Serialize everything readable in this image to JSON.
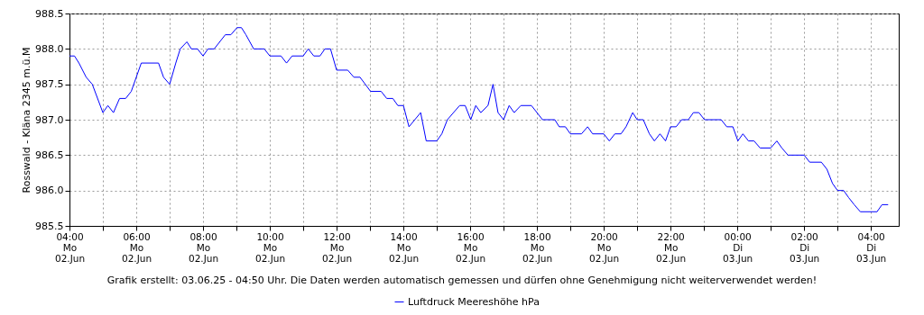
{
  "chart_data": {
    "type": "line",
    "ylabel": "Rosswald - Kläna 2345 m.ü.M",
    "annotations": [
      "Grafik erstellt: 03.06.25 - 04:50 Uhr. Die Daten werden automatisch gemessen und dürfen ohne Genehmigung nicht weiterverwendet werden!"
    ],
    "x": [
      "--06-02T04:00",
      "--06-02T04:09",
      "--06-02T04:17",
      "--06-02T04:30",
      "--06-02T04:41",
      "--06-02T05:00",
      "--06-02T05:09",
      "--06-02T05:19",
      "--06-02T05:30",
      "--06-02T05:41",
      "--06-02T05:51",
      "--06-02T06:09",
      "--06-02T06:40",
      "--06-02T06:49",
      "--06-02T07:00",
      "--06-02T07:11",
      "--06-02T07:19",
      "--06-02T07:31",
      "--06-02T07:39",
      "--06-02T07:50",
      "--06-02T08:00",
      "--06-02T08:09",
      "--06-02T08:20",
      "--06-02T08:40",
      "--06-02T08:50",
      "--06-02T09:01",
      "--06-02T09:09",
      "--06-02T09:17",
      "--06-02T09:31",
      "--06-02T09:50",
      "--06-02T10:00",
      "--06-02T10:20",
      "--06-02T10:30",
      "--06-02T10:40",
      "--06-02T11:00",
      "--06-02T11:09",
      "--06-02T11:19",
      "--06-02T11:30",
      "--06-02T11:39",
      "--06-02T11:49",
      "--06-02T12:00",
      "--06-02T12:20",
      "--06-02T12:31",
      "--06-02T12:42",
      "--06-02T13:01",
      "--06-02T13:20",
      "--06-02T13:30",
      "--06-02T13:41",
      "--06-02T13:50",
      "--06-02T14:00",
      "--06-02T14:10",
      "--06-02T14:31",
      "--06-02T14:41",
      "--06-02T15:00",
      "--06-02T15:09",
      "--06-02T15:19",
      "--06-02T15:41",
      "--06-02T15:51",
      "--06-02T16:01",
      "--06-02T16:10",
      "--06-02T16:19",
      "--06-02T16:32",
      "--06-02T16:41",
      "--06-02T16:50",
      "--06-02T17:00",
      "--06-02T17:10",
      "--06-02T17:19",
      "--06-02T17:31",
      "--06-02T17:50",
      "--06-02T18:10",
      "--06-02T18:32",
      "--06-02T18:40",
      "--06-02T18:51",
      "--06-02T19:00",
      "--06-02T19:20",
      "--06-02T19:31",
      "--06-02T19:40",
      "--06-02T20:00",
      "--06-02T20:10",
      "--06-02T20:20",
      "--06-02T20:31",
      "--06-02T20:40",
      "--06-02T20:52",
      "--06-02T21:00",
      "--06-02T21:11",
      "--06-02T21:22",
      "--06-02T21:31",
      "--06-02T21:41",
      "--06-02T21:51",
      "--06-02T22:00",
      "--06-02T22:10",
      "--06-02T22:20",
      "--06-02T22:32",
      "--06-02T22:41",
      "--06-02T22:51",
      "--06-02T23:01",
      "--06-02T23:31",
      "--06-02T23:41",
      "--06-02T23:52",
      "--06-03T00:01",
      "--06-03T00:10",
      "--06-03T00:20",
      "--06-03T00:30",
      "--06-03T00:41",
      "--06-03T01:00",
      "--06-03T01:11",
      "--06-03T01:20",
      "--06-03T01:31",
      "--06-03T02:00",
      "--06-03T02:10",
      "--06-03T02:31",
      "--06-03T02:41",
      "--06-03T02:51",
      "--06-03T03:00",
      "--06-03T03:11",
      "--06-03T03:20",
      "--06-03T03:30",
      "--06-03T03:41",
      "--06-03T04:11",
      "--06-03T04:20",
      "--06-03T04:31"
    ],
    "series": [
      {
        "name": "Luftdruck Meereshöhe hPa",
        "color": "#0000ff",
        "values": [
          987.9,
          987.9,
          987.8,
          987.6,
          987.5,
          987.1,
          987.2,
          987.1,
          987.3,
          987.3,
          987.4,
          987.8,
          987.8,
          987.6,
          987.5,
          987.8,
          988.0,
          988.1,
          988.0,
          988.0,
          987.9,
          988.0,
          988.0,
          988.2,
          988.2,
          988.3,
          988.3,
          988.2,
          988.0,
          988.0,
          987.9,
          987.9,
          987.8,
          987.9,
          987.9,
          988.0,
          987.9,
          987.9,
          988.0,
          988.0,
          987.7,
          987.7,
          987.6,
          987.6,
          987.4,
          987.4,
          987.3,
          987.3,
          987.2,
          987.2,
          986.9,
          987.1,
          986.7,
          986.7,
          986.8,
          987.0,
          987.2,
          987.2,
          987.0,
          987.2,
          987.1,
          987.2,
          987.5,
          987.1,
          987.0,
          987.2,
          987.1,
          987.2,
          987.2,
          987.0,
          987.0,
          986.9,
          986.9,
          986.8,
          986.8,
          986.9,
          986.8,
          986.8,
          986.7,
          986.8,
          986.8,
          986.9,
          987.1,
          987.0,
          987.0,
          986.8,
          986.7,
          986.8,
          986.7,
          986.9,
          986.9,
          987.0,
          987.0,
          987.1,
          987.1,
          987.0,
          987.0,
          986.9,
          986.9,
          986.7,
          986.8,
          986.7,
          986.7,
          986.6,
          986.6,
          986.7,
          986.6,
          986.5,
          986.5,
          986.4,
          986.4,
          986.3,
          986.1,
          986.0,
          986.0,
          985.9,
          985.8,
          985.7,
          985.7,
          985.8,
          985.8
        ]
      }
    ],
    "xlim": [
      "--06-02T04:00",
      "--06-03T04:50"
    ],
    "xticks": [
      {
        "value": "--06-02T04:00",
        "label": "04:00\nMo\n02.Jun"
      },
      {
        "value": "--06-02T05:00",
        "label": null
      },
      {
        "value": "--06-02T06:00",
        "label": "06:00\nMo\n02.Jun"
      },
      {
        "value": "--06-02T07:00",
        "label": null
      },
      {
        "value": "--06-02T08:00",
        "label": "08:00\nMo\n02.Jun"
      },
      {
        "value": "--06-02T09:00",
        "label": null
      },
      {
        "value": "--06-02T10:00",
        "label": "10:00\nMo\n02.Jun"
      },
      {
        "value": "--06-02T11:00",
        "label": null
      },
      {
        "value": "--06-02T12:00",
        "label": "12:00\nMo\n02.Jun"
      },
      {
        "value": "--06-02T13:00",
        "label": null
      },
      {
        "value": "--06-02T14:00",
        "label": "14:00\nMo\n02.Jun"
      },
      {
        "value": "--06-02T15:00",
        "label": null
      },
      {
        "value": "--06-02T16:00",
        "label": "16:00\nMo\n02.Jun"
      },
      {
        "value": "--06-02T17:00",
        "label": null
      },
      {
        "value": "--06-02T18:00",
        "label": "18:00\nMo\n02.Jun"
      },
      {
        "value": "--06-02T19:00",
        "label": null
      },
      {
        "value": "--06-02T20:00",
        "label": "20:00\nMo\n02.Jun"
      },
      {
        "value": "--06-02T21:00",
        "label": null
      },
      {
        "value": "--06-02T22:00",
        "label": "22:00\nMo\n02.Jun"
      },
      {
        "value": "--06-02T23:00",
        "label": null
      },
      {
        "value": "--06-03T00:00",
        "label": "00:00\nDi\n03.Jun"
      },
      {
        "value": "--06-03T01:00",
        "label": null
      },
      {
        "value": "--06-03T02:00",
        "label": "02:00\nDi\n03.Jun"
      },
      {
        "value": "--06-03T03:00",
        "label": null
      },
      {
        "value": "--06-03T04:00",
        "label": "04:00\nDi\n03.Jun"
      }
    ],
    "ylim": [
      985.5,
      988.5
    ],
    "yticks": [
      985.5,
      {
        "value": 986,
        "label": "986.0"
      },
      986.5,
      {
        "value": 987,
        "label": "987.0"
      },
      987.5,
      {
        "value": 988,
        "label": "988.0"
      },
      988.5
    ],
    "grid": true,
    "legend": "bottom",
    "line_style": "solid"
  }
}
